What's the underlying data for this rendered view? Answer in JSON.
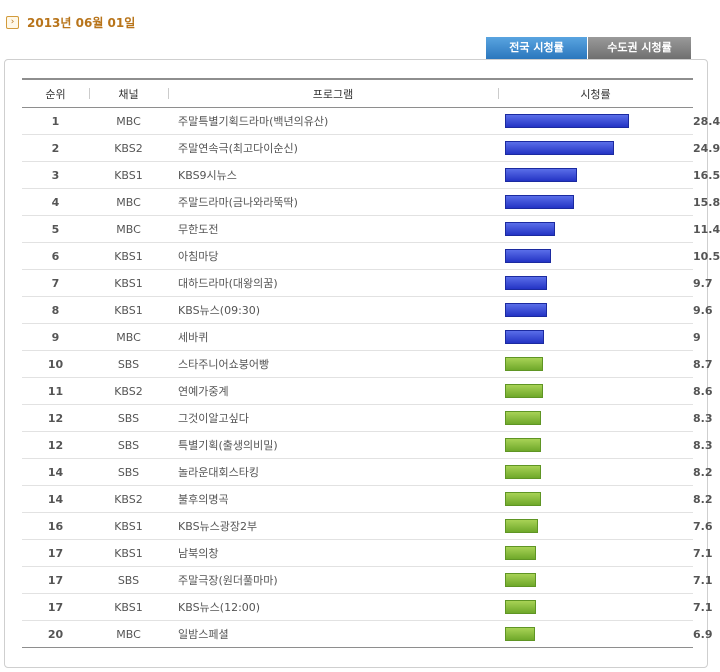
{
  "header": {
    "date": "2013년 06월 01일"
  },
  "tabs": [
    {
      "label": "전국 시청률",
      "active": true
    },
    {
      "label": "수도권 시청률",
      "active": false
    }
  ],
  "columns": {
    "rank": "순위",
    "channel": "채널",
    "program": "프로그램",
    "rating": "시청률"
  },
  "colors": {
    "top_bar": "#2b3fcf",
    "other_bar": "#7fb436",
    "top_text": "#3d52c9",
    "other_text": "#70a82a"
  },
  "rows": [
    {
      "rank": "1",
      "channel": "MBC",
      "program": "주말특별기획드라마(백년의유산)",
      "rating": "28.4",
      "value": 28.4,
      "group": "blue"
    },
    {
      "rank": "2",
      "channel": "KBS2",
      "program": "주말연속극(최고다이순신)",
      "rating": "24.9",
      "value": 24.9,
      "group": "blue"
    },
    {
      "rank": "3",
      "channel": "KBS1",
      "program": "KBS9시뉴스",
      "rating": "16.5",
      "value": 16.5,
      "group": "blue"
    },
    {
      "rank": "4",
      "channel": "MBC",
      "program": "주말드라마(금나와라뚝딱)",
      "rating": "15.8",
      "value": 15.8,
      "group": "blue"
    },
    {
      "rank": "5",
      "channel": "MBC",
      "program": "무한도전",
      "rating": "11.4",
      "value": 11.4,
      "group": "blue"
    },
    {
      "rank": "6",
      "channel": "KBS1",
      "program": "아침마당",
      "rating": "10.5",
      "value": 10.5,
      "group": "blue"
    },
    {
      "rank": "7",
      "channel": "KBS1",
      "program": "대하드라마(대왕의꿈)",
      "rating": "9.7",
      "value": 9.7,
      "group": "blue"
    },
    {
      "rank": "8",
      "channel": "KBS1",
      "program": "KBS뉴스(09:30)",
      "rating": "9.6",
      "value": 9.6,
      "group": "blue"
    },
    {
      "rank": "9",
      "channel": "MBC",
      "program": "세바퀴",
      "rating": "9",
      "value": 9,
      "group": "blue"
    },
    {
      "rank": "10",
      "channel": "SBS",
      "program": "스타주니어쇼붕어빵",
      "rating": "8.7",
      "value": 8.7,
      "group": "green"
    },
    {
      "rank": "11",
      "channel": "KBS2",
      "program": "연예가중계",
      "rating": "8.6",
      "value": 8.6,
      "group": "green"
    },
    {
      "rank": "12",
      "channel": "SBS",
      "program": "그것이알고싶다",
      "rating": "8.3",
      "value": 8.3,
      "group": "green"
    },
    {
      "rank": "12",
      "channel": "SBS",
      "program": "특별기획(출생의비밀)",
      "rating": "8.3",
      "value": 8.3,
      "group": "green"
    },
    {
      "rank": "14",
      "channel": "SBS",
      "program": "놀라운대회스타킹",
      "rating": "8.2",
      "value": 8.2,
      "group": "green"
    },
    {
      "rank": "14",
      "channel": "KBS2",
      "program": "불후의명곡",
      "rating": "8.2",
      "value": 8.2,
      "group": "green"
    },
    {
      "rank": "16",
      "channel": "KBS1",
      "program": "KBS뉴스광장2부",
      "rating": "7.6",
      "value": 7.6,
      "group": "green"
    },
    {
      "rank": "17",
      "channel": "KBS1",
      "program": "남북의창",
      "rating": "7.1",
      "value": 7.1,
      "group": "green"
    },
    {
      "rank": "17",
      "channel": "SBS",
      "program": "주말극장(원더풀마마)",
      "rating": "7.1",
      "value": 7.1,
      "group": "green"
    },
    {
      "rank": "17",
      "channel": "KBS1",
      "program": "KBS뉴스(12:00)",
      "rating": "7.1",
      "value": 7.1,
      "group": "green"
    },
    {
      "rank": "20",
      "channel": "MBC",
      "program": "일밤스페셜",
      "rating": "6.9",
      "value": 6.9,
      "group": "green"
    }
  ]
}
